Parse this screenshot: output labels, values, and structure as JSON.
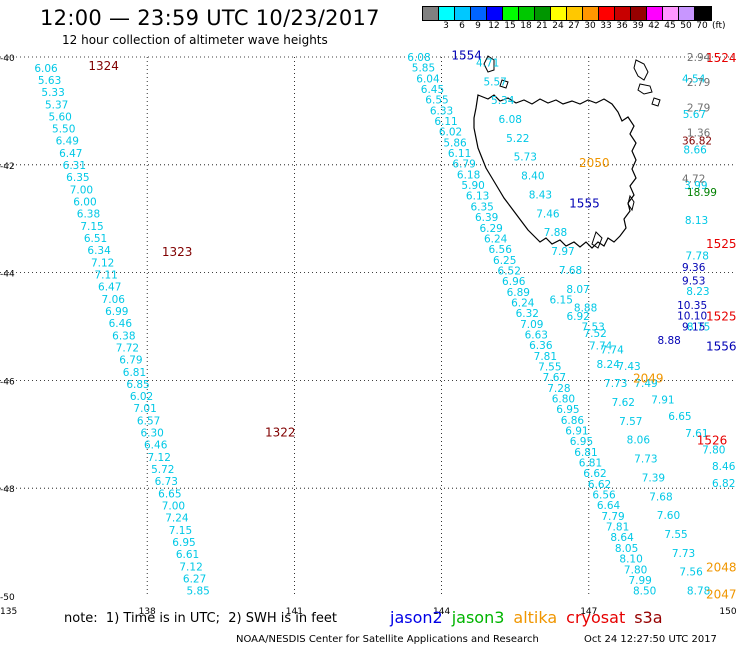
{
  "header": {
    "title": "12:00 — 23:59 UTC 10/23/2017",
    "subtitle": "12 hour collection of altimeter wave heights"
  },
  "legend": {
    "unit": "(ft)",
    "swatches": [
      {
        "label": "",
        "color": "#808080"
      },
      {
        "label": "3",
        "color": "#00ffff"
      },
      {
        "label": "6",
        "color": "#00c8ff"
      },
      {
        "label": "9",
        "color": "#0064ff"
      },
      {
        "label": "12",
        "color": "#0000ff"
      },
      {
        "label": "15",
        "color": "#00ff00"
      },
      {
        "label": "18",
        "color": "#00c800"
      },
      {
        "label": "21",
        "color": "#009600"
      },
      {
        "label": "24",
        "color": "#ffff00"
      },
      {
        "label": "27",
        "color": "#ffc800"
      },
      {
        "label": "30",
        "color": "#ff9600"
      },
      {
        "label": "33",
        "color": "#ff0000"
      },
      {
        "label": "36",
        "color": "#c80000"
      },
      {
        "label": "39",
        "color": "#960000"
      },
      {
        "label": "42",
        "color": "#ff00ff"
      },
      {
        "label": "45",
        "color": "#ff96ff"
      },
      {
        "label": "50",
        "color": "#c896ff"
      },
      {
        "label": "70",
        "color": "#000000"
      }
    ]
  },
  "colors": {
    "cyan": "#00c8e6",
    "blue": "#0000b4",
    "darkred": "#800000",
    "red": "#e60000",
    "orange": "#f09600",
    "gray": "#707070",
    "green": "#008000",
    "coast": "#000000"
  },
  "axes": {
    "lon_labels": [
      "135",
      "138",
      "141",
      "144",
      "147",
      "150"
    ],
    "lat_labels": [
      "-40",
      "-42",
      "-44",
      "-46",
      "-48",
      "-50"
    ]
  },
  "tracks": [
    {
      "id": "track-1",
      "color_key": "cyan",
      "lon_start": 135.7,
      "lat_start": -40.2,
      "lon_end": 138.8,
      "lat_end": -49.9,
      "values": [
        "6.06",
        "5.63",
        "5.33",
        "5.37",
        "5.60",
        "5.50",
        "6.49",
        "6.47",
        "6.31",
        "6.35",
        "7.00",
        "6.00",
        "6.38",
        "7.15",
        "6.51",
        "6.34",
        "7.12",
        "7.11",
        "6.47",
        "7.06",
        "6.99",
        "6.46",
        "6.38",
        "7.72",
        "6.79",
        "6.81",
        "6.85",
        "6.02",
        "7.01",
        "6.57",
        "6.30",
        "6.46",
        "7.12",
        "5.72",
        "6.73",
        "6.65",
        "7.00",
        "7.24",
        "7.15",
        "6.95",
        "6.61",
        "7.12",
        "6.27",
        "5.85"
      ]
    },
    {
      "id": "track-2",
      "color_key": "cyan",
      "lon_start": 143.3,
      "lat_start": -40.0,
      "lon_end": 147.9,
      "lat_end": -49.9,
      "values": [
        "6.08",
        "5.85",
        "6.04",
        "6.45",
        "6.55",
        "6.33",
        "6.11",
        "6.02",
        "5.86",
        "6.11",
        "6.79",
        "6.18",
        "5.90",
        "6.13",
        "6.35",
        "6.39",
        "6.29",
        "6.24",
        "6.56",
        "6.25",
        "6.52",
        "6.96",
        "6.89",
        "6.24",
        "6.32",
        "7.09",
        "6.63",
        "6.36",
        "7.81",
        "7.55",
        "7.67",
        "7.28",
        "6.80",
        "6.95",
        "6.86",
        "6.91",
        "6.95",
        "6.81",
        "6.81",
        "6.62",
        "6.62",
        "6.56",
        "6.64",
        "7.79",
        "7.81",
        "8.64",
        "8.05",
        "8.10",
        "7.80",
        "7.99",
        "8.50"
      ]
    },
    {
      "id": "track-3",
      "color_key": "cyan",
      "lon_start": 144.7,
      "lat_start": -40.1,
      "lon_end": 149.0,
      "lat_end": -49.9,
      "values": [
        "4.71",
        "5.57",
        "5.34",
        "6.08",
        "5.22",
        "5.73",
        "8.40",
        "8.43",
        "7.46",
        "7.88",
        "7.97",
        "7.68",
        "8.07",
        "8.88",
        "7.53",
        "7.74",
        "8.24",
        "7.73",
        "7.62",
        "7.57",
        "8.06",
        "7.73",
        "7.39",
        "7.68",
        "7.60",
        "7.55",
        "7.73",
        "7.56",
        "8.78"
      ]
    },
    {
      "id": "track-4",
      "color_key": "cyan",
      "lon_start": 146.2,
      "lat_start": -44.5,
      "lon_end": 150.0,
      "lat_end": -47.9,
      "values": [
        "6.15",
        "6.92",
        "7.52",
        "7.74",
        "7.43",
        "7.49",
        "7.91",
        "6.65",
        "7.61",
        "7.80",
        "8.46",
        "6.82"
      ]
    },
    {
      "id": "track-5",
      "color_key": "cyan",
      "lon_start": 148.9,
      "lat_start": -40.4,
      "lon_end": 149.0,
      "lat_end": -45.0,
      "values": [
        "4.54",
        "5.67",
        "8.66",
        "3.99",
        "8.13",
        "7.78",
        "8.23",
        "8.75"
      ]
    },
    {
      "id": "track-6",
      "color_key": "gray",
      "lon_start": 149.0,
      "lat_start": -40.0,
      "lon_end": 149.0,
      "lat_end": -41.4,
      "values": [
        "2.94",
        "2.79",
        "2.79",
        "1.36"
      ]
    }
  ],
  "pinned_values": [
    {
      "text": "36.82",
      "color_key": "darkred",
      "lon": 148.9,
      "lat": -41.55
    },
    {
      "text": "4.72",
      "color_key": "gray",
      "lon": 148.9,
      "lat": -42.25
    },
    {
      "text": "18.99",
      "color_key": "green",
      "lon": 149.0,
      "lat": -42.5
    },
    {
      "text": "9.36",
      "color_key": "blue",
      "lon": 148.9,
      "lat": -43.9
    },
    {
      "text": "9.53",
      "color_key": "blue",
      "lon": 148.9,
      "lat": -44.15
    },
    {
      "text": "10.35",
      "color_key": "blue",
      "lon": 148.8,
      "lat": -44.6
    },
    {
      "text": "10.10",
      "color_key": "blue",
      "lon": 148.8,
      "lat": -44.8
    },
    {
      "text": "9.15",
      "color_key": "blue",
      "lon": 148.9,
      "lat": -45.0
    },
    {
      "text": "8.88",
      "color_key": "blue",
      "lon": 148.4,
      "lat": -45.25
    }
  ],
  "pass_labels": [
    {
      "text": "1324",
      "color_key": "darkred",
      "lon": 136.8,
      "lat": -40.15
    },
    {
      "text": "1323",
      "color_key": "darkred",
      "lon": 138.3,
      "lat": -43.6
    },
    {
      "text": "1322",
      "color_key": "darkred",
      "lon": 140.4,
      "lat": -46.95
    },
    {
      "text": "1554",
      "color_key": "blue",
      "lon": 144.2,
      "lat": -39.95
    },
    {
      "text": "2050",
      "color_key": "orange",
      "lon": 146.8,
      "lat": -41.95
    },
    {
      "text": "1555",
      "color_key": "blue",
      "lon": 146.6,
      "lat": -42.7
    },
    {
      "text": "1524",
      "color_key": "red",
      "lon": 150.4,
      "lat": -40.0
    },
    {
      "text": "1525",
      "color_key": "red",
      "lon": 150.2,
      "lat": -43.45
    },
    {
      "text": "1525",
      "color_key": "red",
      "lon": 149.8,
      "lat": -44.8
    },
    {
      "text": "1556",
      "color_key": "blue",
      "lon": 149.5,
      "lat": -45.35
    },
    {
      "text": "2049",
      "color_key": "orange",
      "lon": 147.9,
      "lat": -45.95
    },
    {
      "text": "1526",
      "color_key": "red",
      "lon": 149.2,
      "lat": -47.1
    },
    {
      "text": "2048",
      "color_key": "orange",
      "lon": 150.0,
      "lat": -49.45
    },
    {
      "text": "2047",
      "color_key": "orange",
      "lon": 150.1,
      "lat": -49.95
    }
  ],
  "footer": {
    "note": "note:  1) Time is in UTC;  2) SWH is in feet",
    "satellites": [
      {
        "name": "jason2",
        "color": "#0000e6"
      },
      {
        "name": "jason3",
        "color": "#00b400"
      },
      {
        "name": "altika",
        "color": "#f09600"
      },
      {
        "name": "cryosat",
        "color": "#e60000"
      },
      {
        "name": "s3a",
        "color": "#960000"
      }
    ],
    "credit": "NOAA/NESDIS Center for Satellite Applications and Research",
    "timestamp": "Oct 24 12:27:50 UTC 2017"
  }
}
